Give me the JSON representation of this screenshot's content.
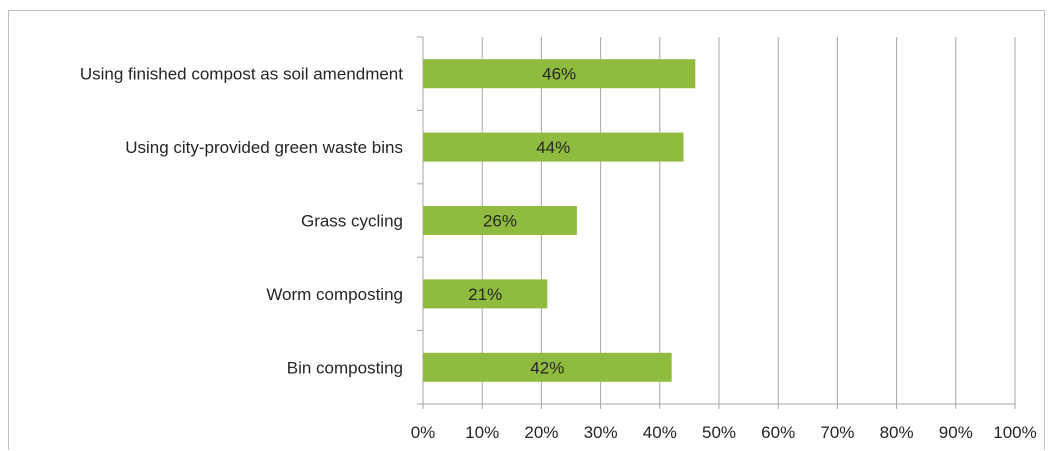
{
  "chart_data": {
    "type": "bar",
    "orientation": "horizontal",
    "categories": [
      "Using finished compost as soil amendment",
      "Using city-provided green waste bins",
      "Grass cycling",
      "Worm composting",
      "Bin composting"
    ],
    "values": [
      46,
      44,
      26,
      21,
      42
    ],
    "data_labels": [
      "46%",
      "44%",
      "26%",
      "21%",
      "42%"
    ],
    "xlim": [
      0,
      100
    ],
    "xticks": [
      0,
      10,
      20,
      30,
      40,
      50,
      60,
      70,
      80,
      90,
      100
    ],
    "xtick_labels": [
      "0%",
      "10%",
      "20%",
      "30%",
      "40%",
      "50%",
      "60%",
      "70%",
      "80%",
      "90%",
      "100%"
    ],
    "grid": "vertical",
    "bar_color": "#8fbc3f",
    "gridline_color": "#a6a6a6"
  }
}
